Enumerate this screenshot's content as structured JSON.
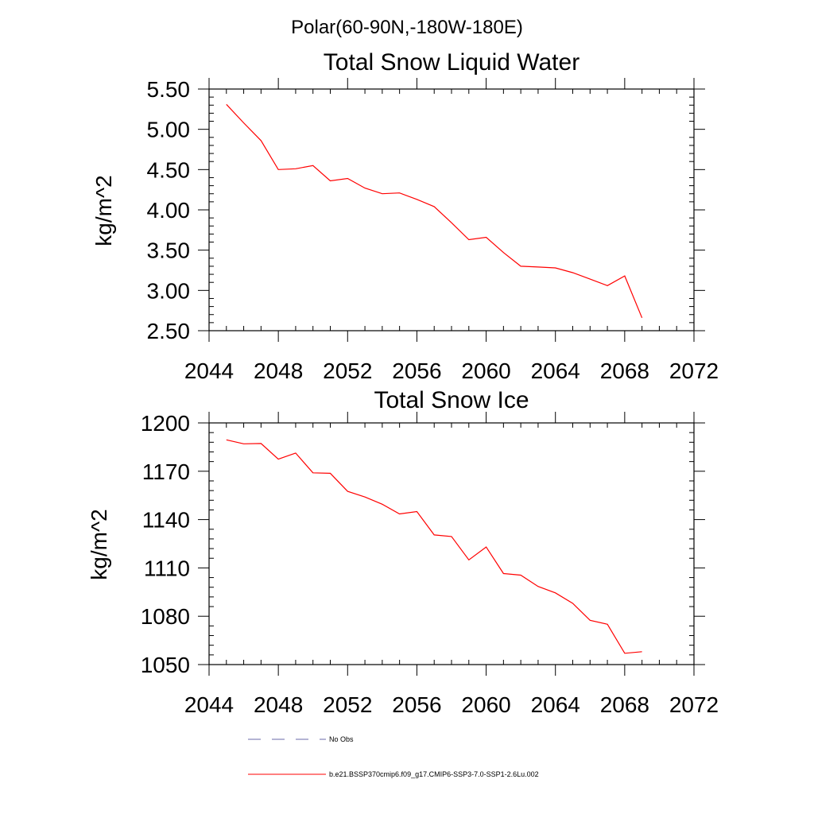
{
  "suptitle": "Polar(60-90N,-180W-180E)",
  "chart_data": [
    {
      "type": "line",
      "title": "Total Snow Liquid Water",
      "xlabel": "",
      "ylabel": "kg/m^2",
      "xlim": [
        2044,
        2072
      ],
      "ylim": [
        2.5,
        5.5
      ],
      "xticks": [
        "2044",
        "2048",
        "2052",
        "2056",
        "2060",
        "2064",
        "2068",
        "2072"
      ],
      "yticks": [
        "2.50",
        "3.00",
        "3.50",
        "4.00",
        "4.50",
        "5.00",
        "5.50"
      ],
      "series": [
        {
          "name": "b.e21.BSSP370cmip6.f09_g17.CMIP6-SSP3-7.0-SSP1-2.6Lu.002",
          "color": "#ff0000",
          "x": [
            2045,
            2046,
            2047,
            2048,
            2049,
            2050,
            2051,
            2052,
            2053,
            2054,
            2055,
            2056,
            2057,
            2058,
            2059,
            2060,
            2061,
            2062,
            2063,
            2064,
            2065,
            2066,
            2067,
            2068,
            2069
          ],
          "y": [
            5.31,
            5.08,
            4.86,
            4.5,
            4.51,
            4.55,
            4.36,
            4.39,
            4.27,
            4.2,
            4.21,
            4.13,
            4.04,
            3.84,
            3.63,
            3.66,
            3.47,
            3.3,
            3.29,
            3.28,
            3.22,
            3.14,
            3.06,
            3.18,
            2.66
          ]
        }
      ]
    },
    {
      "type": "line",
      "title": "Total Snow Ice",
      "xlabel": "",
      "ylabel": "kg/m^2",
      "xlim": [
        2044,
        2072
      ],
      "ylim": [
        1050,
        1200
      ],
      "xticks": [
        "2044",
        "2048",
        "2052",
        "2056",
        "2060",
        "2064",
        "2068",
        "2072"
      ],
      "yticks": [
        "1050",
        "1080",
        "1110",
        "1140",
        "1170",
        "1200"
      ],
      "series": [
        {
          "name": "b.e21.BSSP370cmip6.f09_g17.CMIP6-SSP3-7.0-SSP1-2.6Lu.002",
          "color": "#ff0000",
          "x": [
            2045,
            2046,
            2047,
            2048,
            2049,
            2050,
            2051,
            2052,
            2053,
            2054,
            2055,
            2056,
            2057,
            2058,
            2059,
            2060,
            2061,
            2062,
            2063,
            2064,
            2065,
            2066,
            2067,
            2068,
            2069
          ],
          "y": [
            1189.5,
            1187,
            1187.2,
            1177.5,
            1181.3,
            1169,
            1168.7,
            1157.5,
            1154,
            1149.5,
            1143.5,
            1145,
            1130.5,
            1129.5,
            1115,
            1123,
            1106.5,
            1105.5,
            1098.5,
            1094.5,
            1088,
            1077.5,
            1075,
            1057,
            1058
          ]
        }
      ]
    }
  ],
  "legend": {
    "placement": "bottom",
    "entries": [
      {
        "label": "No Obs",
        "color": "#6a6aa8",
        "style": "dashed"
      },
      {
        "label": "b.e21.BSSP370cmip6.f09_g17.CMIP6-SSP3-7.0-SSP1-2.6Lu.002",
        "color": "#ff0000",
        "style": "solid"
      }
    ]
  }
}
